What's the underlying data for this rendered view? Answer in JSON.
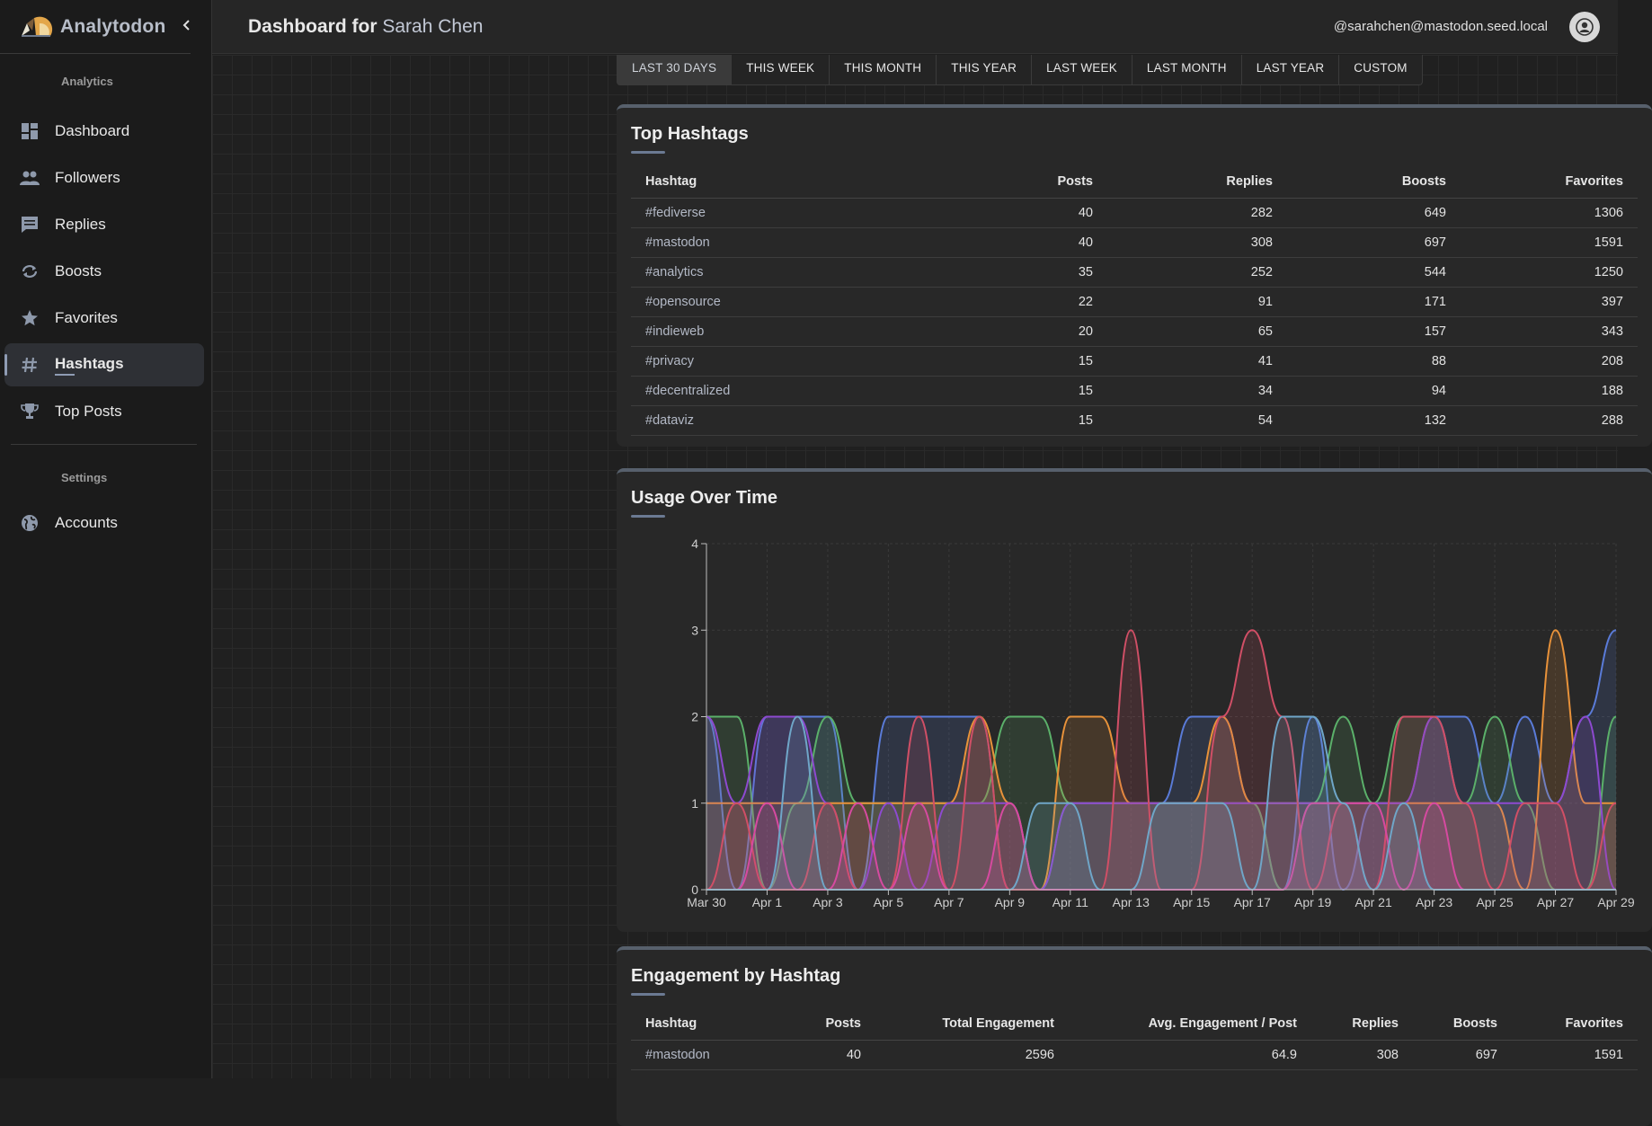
{
  "app": {
    "name": "Analytodon"
  },
  "sidebar": {
    "sections": [
      {
        "label": "Analytics"
      },
      {
        "label": "Settings"
      }
    ],
    "items": [
      {
        "label": "Dashboard",
        "icon": "dashboard-icon"
      },
      {
        "label": "Followers",
        "icon": "people-icon"
      },
      {
        "label": "Replies",
        "icon": "comment-icon"
      },
      {
        "label": "Boosts",
        "icon": "repeat-icon"
      },
      {
        "label": "Favorites",
        "icon": "star-icon"
      },
      {
        "label": "Hashtags",
        "icon": "hash-icon",
        "active": true
      },
      {
        "label": "Top Posts",
        "icon": "trophy-icon"
      },
      {
        "label": "Accounts",
        "icon": "globe-icon"
      }
    ]
  },
  "header": {
    "title_prefix": "Dashboard for",
    "user_name": "Sarah Chen",
    "handle": "@sarahchen@mastodon.seed.local"
  },
  "tabs": [
    {
      "label": "LAST 30 DAYS",
      "active": true
    },
    {
      "label": "THIS WEEK"
    },
    {
      "label": "THIS MONTH"
    },
    {
      "label": "THIS YEAR"
    },
    {
      "label": "LAST WEEK"
    },
    {
      "label": "LAST MONTH"
    },
    {
      "label": "LAST YEAR"
    },
    {
      "label": "CUSTOM"
    }
  ],
  "top_hashtags": {
    "title": "Top Hashtags",
    "columns": [
      "Hashtag",
      "Posts",
      "Replies",
      "Boosts",
      "Favorites"
    ],
    "rows": [
      [
        "#fediverse",
        "40",
        "282",
        "649",
        "1306"
      ],
      [
        "#mastodon",
        "40",
        "308",
        "697",
        "1591"
      ],
      [
        "#analytics",
        "35",
        "252",
        "544",
        "1250"
      ],
      [
        "#opensource",
        "22",
        "91",
        "171",
        "397"
      ],
      [
        "#indieweb",
        "20",
        "65",
        "157",
        "343"
      ],
      [
        "#privacy",
        "15",
        "41",
        "88",
        "208"
      ],
      [
        "#decentralized",
        "15",
        "34",
        "94",
        "188"
      ],
      [
        "#dataviz",
        "15",
        "54",
        "132",
        "288"
      ]
    ]
  },
  "usage": {
    "title": "Usage Over Time"
  },
  "chart_data": {
    "type": "area",
    "x": [
      "Mar 30",
      "Mar 31",
      "Apr 1",
      "Apr 2",
      "Apr 3",
      "Apr 4",
      "Apr 5",
      "Apr 6",
      "Apr 7",
      "Apr 8",
      "Apr 9",
      "Apr 10",
      "Apr 11",
      "Apr 12",
      "Apr 13",
      "Apr 14",
      "Apr 15",
      "Apr 16",
      "Apr 17",
      "Apr 18",
      "Apr 19",
      "Apr 20",
      "Apr 21",
      "Apr 22",
      "Apr 23",
      "Apr 24",
      "Apr 25",
      "Apr 26",
      "Apr 27",
      "Apr 28",
      "Apr 29"
    ],
    "xticks": [
      "Mar 30",
      "Apr 1",
      "Apr 3",
      "Apr 5",
      "Apr 7",
      "Apr 9",
      "Apr 11",
      "Apr 13",
      "Apr 15",
      "Apr 17",
      "Apr 19",
      "Apr 21",
      "Apr 23",
      "Apr 25",
      "Apr 27",
      "Apr 29"
    ],
    "ylim": [
      0,
      4
    ],
    "yticks": [
      0,
      1,
      2,
      3,
      4
    ],
    "grid": true,
    "series": [
      {
        "color": "#5a7bd8",
        "values": [
          2,
          0,
          2,
          2,
          2,
          0,
          2,
          2,
          2,
          2,
          0,
          0,
          1,
          1,
          1,
          1,
          2,
          2,
          1,
          0,
          2,
          0,
          1,
          1,
          2,
          2,
          1,
          2,
          1,
          2,
          3
        ]
      },
      {
        "color": "#5bb06a",
        "values": [
          2,
          2,
          0,
          1,
          2,
          1,
          1,
          1,
          1,
          1,
          2,
          2,
          1,
          1,
          1,
          1,
          1,
          1,
          1,
          0,
          1,
          2,
          1,
          2,
          2,
          1,
          2,
          1,
          0,
          0,
          2
        ]
      },
      {
        "color": "#e8923a",
        "values": [
          1,
          1,
          1,
          1,
          1,
          1,
          1,
          1,
          1,
          2,
          1,
          0,
          2,
          2,
          1,
          1,
          1,
          2,
          1,
          1,
          1,
          1,
          1,
          1,
          1,
          1,
          1,
          0,
          3,
          1,
          1
        ]
      },
      {
        "color": "#8d4ad0",
        "values": [
          2,
          1,
          2,
          2,
          1,
          0,
          1,
          0,
          1,
          1,
          1,
          0,
          1,
          1,
          1,
          1,
          1,
          1,
          1,
          1,
          1,
          1,
          1,
          1,
          2,
          1,
          1,
          1,
          1,
          2,
          0
        ]
      },
      {
        "color": "#d04f66",
        "values": [
          0,
          1,
          0,
          0,
          1,
          0,
          0,
          2,
          0,
          2,
          0,
          0,
          0,
          0,
          3,
          0,
          0,
          2,
          3,
          2,
          0,
          1,
          0,
          2,
          2,
          1,
          0,
          1,
          1,
          0,
          1
        ]
      },
      {
        "color": "#d64aa0",
        "values": [
          0,
          0,
          1,
          0,
          0,
          1,
          0,
          1,
          0,
          0,
          1,
          0,
          0,
          0,
          0,
          0,
          0,
          0,
          0,
          0,
          1,
          1,
          1,
          0,
          1,
          0,
          0,
          0,
          0,
          0,
          0
        ]
      },
      {
        "color": "#6fa6c8",
        "values": [
          0,
          0,
          0,
          2,
          0,
          0,
          0,
          0,
          0,
          0,
          0,
          1,
          1,
          0,
          0,
          1,
          1,
          1,
          0,
          2,
          2,
          1,
          0,
          1,
          0,
          0,
          0,
          0,
          0,
          0,
          0
        ]
      }
    ]
  },
  "engagement": {
    "title": "Engagement by Hashtag",
    "columns": [
      "Hashtag",
      "Posts",
      "Total Engagement",
      "Avg. Engagement / Post",
      "Replies",
      "Boosts",
      "Favorites"
    ],
    "rows": [
      [
        "#mastodon",
        "40",
        "2596",
        "64.9",
        "308",
        "697",
        "1591"
      ]
    ]
  }
}
